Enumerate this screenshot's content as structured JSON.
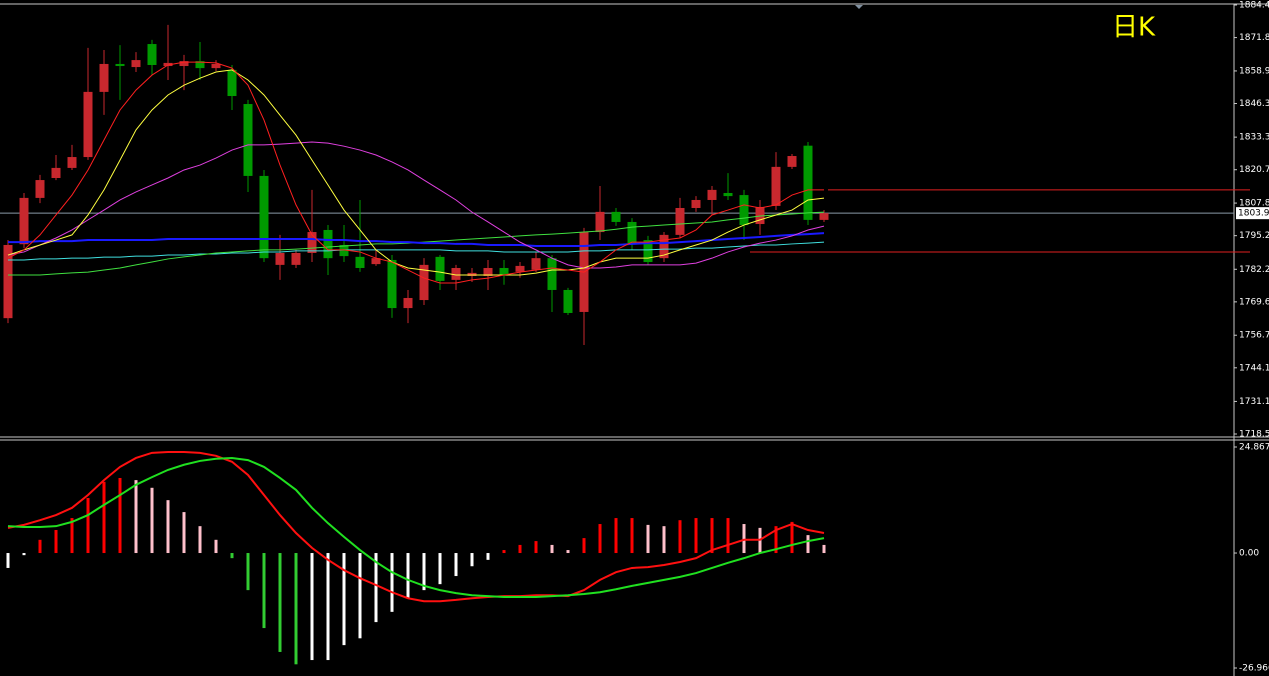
{
  "chart_data": [
    {
      "type": "candlestick",
      "period": "日K",
      "ylim": [
        1718.5,
        1884.4
      ],
      "yticks": [
        1884.4,
        1871.8,
        1858.9,
        1846.3,
        1833.3,
        1820.7,
        1807.8,
        1795.2,
        1782.2,
        1769.6,
        1756.7,
        1744.1,
        1731.1,
        1718.5
      ],
      "up_color": "#c8282e",
      "down_color": "#009a00",
      "open": [
        1763.3,
        1791.9,
        1809.8,
        1817.5,
        1821.4,
        1825.6,
        1850.8,
        1861.6,
        1860.4,
        1869.3,
        1860.8,
        1860.8,
        1862.7,
        1860.0,
        1859.3,
        1846.1,
        1818.3,
        1783.9,
        1783.9,
        1788.5,
        1797.4,
        1791.6,
        1787.0,
        1784.2,
        1785.8,
        1767.2,
        1770.3,
        1787.0,
        1778.1,
        1779.6,
        1779.6,
        1782.7,
        1781.2,
        1782.0,
        1786.5,
        1774.2,
        1765.7,
        1796.6,
        1804.4,
        1800.5,
        1793.5,
        1786.5,
        1795.5,
        1805.9,
        1809.0,
        1811.7,
        1810.9,
        1799.7,
        1806.7,
        1821.8,
        1830.0,
        1801.3
      ],
      "high": [
        1793.5,
        1811.7,
        1818.7,
        1826.4,
        1830.3,
        1867.8,
        1867.0,
        1868.9,
        1866.2,
        1870.9,
        1876.7,
        1865.1,
        1870.1,
        1863.1,
        1861.2,
        1847.7,
        1820.6,
        1795.5,
        1789.7,
        1812.9,
        1799.3,
        1799.3,
        1809.0,
        1789.7,
        1787.7,
        1774.2,
        1786.5,
        1787.7,
        1783.9,
        1782.7,
        1785.8,
        1785.8,
        1785.0,
        1788.9,
        1787.7,
        1775.0,
        1798.2,
        1814.4,
        1805.9,
        1802.0,
        1795.1,
        1796.6,
        1809.8,
        1810.5,
        1814.4,
        1819.4,
        1812.9,
        1809.0,
        1827.5,
        1826.8,
        1831.4,
        1805.1
      ],
      "low": [
        1761.4,
        1790.4,
        1807.8,
        1816.7,
        1820.6,
        1824.5,
        1841.9,
        1847.7,
        1858.5,
        1857.3,
        1855.4,
        1851.5,
        1855.4,
        1858.9,
        1843.8,
        1812.1,
        1785.0,
        1778.1,
        1782.7,
        1785.0,
        1780.0,
        1785.0,
        1781.2,
        1783.5,
        1763.4,
        1761.4,
        1768.4,
        1774.2,
        1774.2,
        1777.3,
        1774.2,
        1776.2,
        1778.9,
        1781.2,
        1765.7,
        1764.5,
        1752.9,
        1793.5,
        1799.0,
        1789.7,
        1783.9,
        1785.0,
        1794.3,
        1804.4,
        1803.3,
        1809.0,
        1793.5,
        1795.5,
        1805.1,
        1821.0,
        1799.3,
        1800.5
      ],
      "close": [
        1791.6,
        1809.8,
        1816.7,
        1821.4,
        1825.6,
        1850.8,
        1861.6,
        1860.8,
        1863.1,
        1861.2,
        1862.0,
        1862.7,
        1860.0,
        1861.6,
        1849.2,
        1818.3,
        1786.5,
        1788.5,
        1788.5,
        1796.6,
        1786.5,
        1787.3,
        1782.7,
        1786.5,
        1767.2,
        1771.1,
        1783.9,
        1777.7,
        1782.7,
        1780.8,
        1782.7,
        1780.0,
        1783.5,
        1786.5,
        1774.2,
        1765.3,
        1796.6,
        1804.4,
        1800.5,
        1792.3,
        1785.0,
        1795.5,
        1805.9,
        1809.0,
        1812.9,
        1810.5,
        1799.3,
        1806.3,
        1821.8,
        1826.0,
        1801.3,
        1803.9
      ],
      "lines": [
        {
          "color": "#40e0e0",
          "values": [
            1785.8,
            1785.8,
            1786.2,
            1786.2,
            1786.5,
            1786.5,
            1786.9,
            1786.9,
            1787.3,
            1787.3,
            1787.7,
            1787.7,
            1788.1,
            1788.1,
            1788.5,
            1788.5,
            1788.9,
            1788.9,
            1789.3,
            1789.3,
            1789.3,
            1789.7,
            1789.7,
            1789.7,
            1789.7,
            1789.7,
            1789.7,
            1789.7,
            1789.3,
            1789.3,
            1789.3,
            1788.9,
            1788.9,
            1788.9,
            1788.9,
            1788.9,
            1789.3,
            1789.3,
            1789.7,
            1789.7,
            1789.7,
            1790.0,
            1790.0,
            1790.4,
            1790.4,
            1790.8,
            1791.2,
            1791.6,
            1791.6,
            1792.0,
            1792.3,
            1792.7
          ]
        },
        {
          "color": "#40e040",
          "values": [
            1780.0,
            1780.0,
            1780.0,
            1780.4,
            1780.8,
            1781.1,
            1781.9,
            1782.7,
            1783.9,
            1785.0,
            1786.2,
            1787.0,
            1787.7,
            1788.5,
            1788.9,
            1789.3,
            1789.7,
            1789.7,
            1790.0,
            1790.4,
            1790.8,
            1791.2,
            1791.6,
            1792.0,
            1792.0,
            1792.3,
            1792.7,
            1793.1,
            1793.5,
            1793.9,
            1794.3,
            1794.7,
            1795.1,
            1795.5,
            1795.8,
            1796.2,
            1796.6,
            1797.0,
            1797.7,
            1798.5,
            1798.9,
            1799.3,
            1799.7,
            1800.1,
            1800.5,
            1801.3,
            1802.0,
            1802.8,
            1803.2,
            1803.6,
            1804.0,
            1804.3
          ]
        },
        {
          "color": "#1a1aff",
          "values": [
            1792.7,
            1792.7,
            1793.1,
            1793.1,
            1793.1,
            1793.5,
            1793.5,
            1793.5,
            1793.5,
            1793.5,
            1793.9,
            1793.9,
            1793.9,
            1793.9,
            1793.9,
            1793.9,
            1793.9,
            1793.9,
            1793.9,
            1793.9,
            1793.5,
            1793.5,
            1793.1,
            1793.1,
            1792.7,
            1792.7,
            1792.3,
            1792.3,
            1792.0,
            1792.0,
            1791.6,
            1791.6,
            1791.6,
            1791.2,
            1791.2,
            1791.2,
            1791.2,
            1791.6,
            1791.6,
            1792.0,
            1792.3,
            1792.3,
            1792.7,
            1793.1,
            1793.5,
            1793.9,
            1794.3,
            1794.7,
            1795.1,
            1795.5,
            1795.8,
            1796.2
          ]
        },
        {
          "color": "#e040e0",
          "values": [
            1787.7,
            1788.9,
            1791.6,
            1794.3,
            1797.4,
            1801.3,
            1805.1,
            1809.0,
            1812.1,
            1814.8,
            1817.5,
            1820.6,
            1822.5,
            1825.2,
            1828.3,
            1830.3,
            1830.3,
            1830.6,
            1831.0,
            1831.4,
            1831.0,
            1829.8,
            1828.3,
            1826.4,
            1823.7,
            1820.6,
            1816.7,
            1812.9,
            1809.0,
            1804.3,
            1800.5,
            1796.6,
            1792.7,
            1789.7,
            1786.5,
            1783.9,
            1782.7,
            1782.7,
            1783.1,
            1783.9,
            1783.9,
            1783.9,
            1783.9,
            1784.6,
            1786.5,
            1788.9,
            1790.8,
            1792.3,
            1793.5,
            1795.1,
            1797.4,
            1798.9
          ]
        },
        {
          "color": "#ffff40",
          "values": [
            1787.7,
            1789.7,
            1791.6,
            1793.5,
            1795.5,
            1803.2,
            1812.9,
            1824.4,
            1836.1,
            1843.8,
            1849.6,
            1853.4,
            1856.1,
            1858.5,
            1859.3,
            1855.4,
            1849.6,
            1841.8,
            1834.1,
            1824.4,
            1814.8,
            1805.1,
            1797.4,
            1789.7,
            1785.0,
            1782.7,
            1781.9,
            1781.1,
            1780.0,
            1780.0,
            1780.0,
            1780.0,
            1780.0,
            1780.7,
            1781.9,
            1781.9,
            1782.7,
            1785.0,
            1786.5,
            1786.5,
            1786.5,
            1787.7,
            1789.7,
            1791.6,
            1793.5,
            1796.6,
            1799.3,
            1801.3,
            1803.2,
            1805.1,
            1809.0,
            1809.7
          ]
        },
        {
          "color": "#ff2020",
          "values": [
            1786.5,
            1789.7,
            1795.5,
            1803.2,
            1810.9,
            1820.6,
            1832.2,
            1843.8,
            1851.5,
            1857.3,
            1861.2,
            1862.3,
            1862.3,
            1862.0,
            1860.0,
            1853.4,
            1839.9,
            1822.5,
            1807.1,
            1795.5,
            1789.7,
            1789.7,
            1788.9,
            1786.5,
            1785.0,
            1781.9,
            1778.8,
            1776.9,
            1776.9,
            1778.1,
            1778.8,
            1780.0,
            1781.1,
            1781.9,
            1782.7,
            1781.9,
            1781.1,
            1785.0,
            1789.7,
            1792.7,
            1792.7,
            1793.5,
            1794.3,
            1797.4,
            1803.2,
            1805.1,
            1807.1,
            1805.9,
            1807.1,
            1810.9,
            1812.9,
            1812.9
          ]
        }
      ],
      "levels": [
        1812.9,
        1788.9
      ],
      "level_color": "#e02020",
      "current_price": 1803.9
    },
    {
      "type": "macd",
      "ylim": [
        -26.966,
        24.8678
      ],
      "yticks": [
        24.8678,
        {
          "value": 0,
          "label": "0.00"
        },
        -26.966
      ],
      "rise_pos_color": "#ff0000",
      "fall_pos_color": "#ffc0cb",
      "rise_neg_color": "#ffffff",
      "fall_neg_color": "#32cd32",
      "histogram": [
        -3.5,
        -0.5,
        3.1,
        5.4,
        8.2,
        12.9,
        16.7,
        17.6,
        17.1,
        15.3,
        12.4,
        9.6,
        6.3,
        3.1,
        -1.2,
        -8.7,
        -17.6,
        -23.2,
        -26.1,
        -25.1,
        -25.1,
        -21.6,
        -20.0,
        -16.2,
        -13.8,
        -10.6,
        -8.7,
        -7.3,
        -5.4,
        -3.1,
        -1.6,
        0.7,
        1.9,
        2.8,
        1.9,
        0.7,
        3.5,
        6.8,
        8.2,
        8.2,
        6.6,
        6.3,
        7.7,
        8.2,
        8.2,
        8.2,
        6.8,
        5.9,
        6.3,
        7.3,
        4.2,
        1.9
      ],
      "lines": [
        {
          "color": "#ff1010",
          "values": [
            5.9,
            6.6,
            7.7,
            8.9,
            10.6,
            13.6,
            17.1,
            20.2,
            22.3,
            23.5,
            23.7,
            23.7,
            23.5,
            22.8,
            21.4,
            18.3,
            13.6,
            8.9,
            4.7,
            1.2,
            -1.6,
            -4.0,
            -5.9,
            -7.5,
            -9.2,
            -10.6,
            -11.3,
            -11.3,
            -11.0,
            -10.6,
            -10.3,
            -10.1,
            -10.1,
            -9.9,
            -9.9,
            -10.1,
            -8.7,
            -6.3,
            -4.5,
            -3.5,
            -3.3,
            -2.8,
            -2.1,
            -1.2,
            0.7,
            1.9,
            3.1,
            3.1,
            5.4,
            6.8,
            5.4,
            4.7
          ]
        },
        {
          "color": "#20e020",
          "values": [
            6.3,
            6.1,
            6.1,
            6.3,
            7.3,
            8.9,
            11.3,
            13.6,
            16.0,
            17.8,
            19.5,
            20.7,
            21.6,
            22.1,
            22.3,
            21.8,
            20.2,
            17.6,
            14.8,
            10.6,
            7.0,
            3.8,
            0.7,
            -2.1,
            -4.5,
            -6.3,
            -7.7,
            -8.7,
            -9.4,
            -9.9,
            -10.1,
            -10.3,
            -10.3,
            -10.3,
            -10.1,
            -9.9,
            -9.6,
            -9.2,
            -8.5,
            -7.7,
            -7.0,
            -6.3,
            -5.6,
            -4.7,
            -3.5,
            -2.3,
            -1.2,
            0.0,
            0.9,
            1.9,
            2.8,
            3.5
          ]
        }
      ]
    }
  ]
}
